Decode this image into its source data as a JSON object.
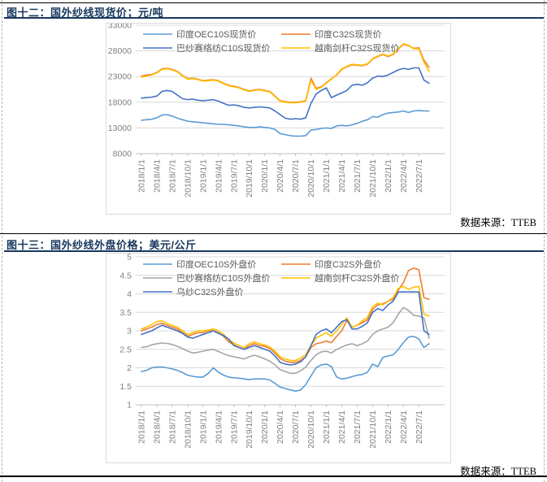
{
  "figures": [
    {
      "title": "图十二：国外纱线现货价；元/吨",
      "source": "数据来源：TTEB"
    },
    {
      "title": "图十三：国外纱线外盘价格；美元/公斤",
      "source": "数据来源：TTEB"
    }
  ],
  "theme": {
    "title_color": "#17375E",
    "grid_color": "#D9D9D9",
    "axis_line_color": "#BFBFBF",
    "axis_text_color": "#808080",
    "legend_text_color": "#595959",
    "separator_color": "#000000"
  },
  "chart_data": [
    {
      "type": "line",
      "title": "国外纱线现货价",
      "unit": "元/吨",
      "grid": true,
      "legend_position": "top-inside-two-columns",
      "x_start": "2018/1/1",
      "x_end": "2022/9/1",
      "x_interval": "monthly",
      "x_tick_labels": [
        "2018/1/1",
        "2018/4/1",
        "2018/7/1",
        "2018/10/1",
        "2019/1/1",
        "2019/4/1",
        "2019/7/1",
        "2019/10/1",
        "2020/1/1",
        "2020/4/1",
        "2020/7/1",
        "2020/10/1",
        "2021/1/1",
        "2021/4/1",
        "2021/7/1",
        "2021/10/1",
        "2022/1/1",
        "2022/4/1",
        "2022/7/1"
      ],
      "y_axis": {
        "min": 8000,
        "max": 33000,
        "step": 5000,
        "tick_labels": [
          "33000",
          "28000",
          "23000",
          "18000",
          "13000",
          "8000"
        ]
      },
      "series": [
        {
          "name": "印度OEC10S现货价",
          "color": "#5B9BD5",
          "values": [
            14500,
            14600,
            14700,
            15000,
            15500,
            15600,
            15300,
            14900,
            14600,
            14300,
            14200,
            14100,
            14000,
            13900,
            13800,
            13700,
            13700,
            13600,
            13500,
            13400,
            13200,
            13100,
            13100,
            13200,
            13100,
            13000,
            12700,
            11900,
            11700,
            11500,
            11400,
            11400,
            11500,
            12600,
            12700,
            12900,
            13000,
            12900,
            13400,
            13500,
            13400,
            13600,
            13900,
            14300,
            14600,
            15200,
            15100,
            15600,
            15900,
            16000,
            16100,
            16300,
            16000,
            16300,
            16400,
            16300,
            16300
          ]
        },
        {
          "name": "印度C32S现货价",
          "color": "#ED7D31",
          "values": [
            23100,
            23300,
            23400,
            23800,
            24500,
            24600,
            24400,
            24000,
            23200,
            22600,
            22700,
            22500,
            22200,
            22300,
            22400,
            22200,
            21700,
            21300,
            21100,
            20900,
            20500,
            20200,
            20400,
            20500,
            20300,
            20100,
            19200,
            18300,
            18100,
            18000,
            18000,
            18100,
            18300,
            22700,
            20700,
            21000,
            21800,
            22600,
            23300,
            24400,
            24900,
            25300,
            25200,
            25100,
            25400,
            26400,
            26900,
            27300,
            26900,
            27300,
            28300,
            29300,
            29000,
            28500,
            28600,
            26200,
            24800
          ]
        },
        {
          "name": "巴纱赛络纺C10S现货价",
          "color": "#4472C4",
          "values": [
            18800,
            18900,
            19000,
            19200,
            20100,
            20300,
            20100,
            19400,
            18700,
            18500,
            18600,
            18400,
            18300,
            18400,
            18500,
            18200,
            17800,
            17400,
            17500,
            17300,
            17000,
            16900,
            17000,
            17100,
            17000,
            16900,
            16300,
            15600,
            14900,
            14700,
            14800,
            14700,
            15000,
            17800,
            19600,
            20300,
            20800,
            18900,
            19400,
            19800,
            20300,
            21300,
            21500,
            21300,
            21800,
            22700,
            23100,
            23000,
            23300,
            23800,
            24300,
            24600,
            24400,
            24700,
            24700,
            22300,
            21700
          ]
        },
        {
          "name": "越南剑杆C32S现货价",
          "color": "#FFC000",
          "values": [
            22900,
            23100,
            23300,
            23700,
            24400,
            24500,
            24300,
            23900,
            23100,
            22500,
            22600,
            22400,
            22100,
            22200,
            22300,
            22100,
            21600,
            21200,
            21000,
            20800,
            20400,
            20100,
            20300,
            20400,
            20200,
            20000,
            19100,
            18200,
            18000,
            17900,
            17900,
            18000,
            18200,
            22300,
            20500,
            20900,
            21700,
            22500,
            23400,
            24500,
            25000,
            25400,
            25300,
            25200,
            25500,
            26500,
            27000,
            27400,
            27000,
            27400,
            28400,
            29400,
            29100,
            28400,
            28400,
            25800,
            24000
          ]
        }
      ]
    },
    {
      "type": "line",
      "title": "国外纱线外盘价格",
      "unit": "美元/公斤",
      "grid": true,
      "legend_position": "top-inside-two-columns",
      "x_start": "2018/1/1",
      "x_end": "2022/9/1",
      "x_interval": "monthly",
      "x_tick_labels": [
        "2018/1/1",
        "2018/4/1",
        "2018/7/1",
        "2018/10/1",
        "2019/1/1",
        "2019/4/1",
        "2019/7/1",
        "2019/10/1",
        "2020/1/1",
        "2020/4/1",
        "2020/7/1",
        "2020/10/1",
        "2021/1/1",
        "2021/4/1",
        "2021/7/1",
        "2021/10/1",
        "2022/1/1",
        "2022/4/1",
        "2022/7/1"
      ],
      "y_axis": {
        "min": 1,
        "max": 5,
        "step": 0.5,
        "tick_labels": [
          "5",
          "4.5",
          "4",
          "3.5",
          "3",
          "2.5",
          "2",
          "1.5",
          "1"
        ]
      },
      "series": [
        {
          "name": "印度OEC10S外盘价",
          "color": "#5B9BD5",
          "values": [
            1.9,
            1.93,
            2.0,
            2.02,
            2.02,
            2.0,
            1.97,
            1.93,
            1.87,
            1.8,
            1.77,
            1.75,
            1.75,
            1.85,
            2.0,
            1.88,
            1.8,
            1.75,
            1.73,
            1.72,
            1.7,
            1.68,
            1.7,
            1.7,
            1.7,
            1.67,
            1.58,
            1.48,
            1.44,
            1.4,
            1.37,
            1.4,
            1.55,
            1.78,
            2.0,
            2.08,
            2.1,
            2.03,
            1.75,
            1.7,
            1.72,
            1.76,
            1.8,
            1.82,
            1.88,
            2.1,
            2.03,
            2.28,
            2.32,
            2.35,
            2.5,
            2.68,
            2.83,
            2.85,
            2.78,
            2.55,
            2.65
          ]
        },
        {
          "name": "印度C32S外盘价",
          "color": "#ED7D31",
          "values": [
            3.0,
            3.05,
            3.1,
            3.17,
            3.2,
            3.15,
            3.1,
            3.05,
            2.95,
            2.85,
            2.9,
            2.95,
            2.95,
            3.0,
            3.0,
            2.95,
            2.85,
            2.7,
            2.62,
            2.55,
            2.5,
            2.6,
            2.65,
            2.6,
            2.58,
            2.52,
            2.4,
            2.25,
            2.18,
            2.15,
            2.15,
            2.2,
            2.3,
            2.55,
            2.65,
            2.68,
            2.72,
            2.68,
            2.85,
            3.0,
            3.28,
            3.1,
            3.15,
            3.22,
            3.3,
            3.58,
            3.7,
            3.73,
            3.8,
            3.85,
            4.1,
            4.3,
            4.63,
            4.7,
            4.65,
            3.9,
            3.85
          ]
        },
        {
          "name": "巴纱赛络纺C10S外盘价",
          "color": "#A5A5A5",
          "values": [
            2.55,
            2.57,
            2.62,
            2.65,
            2.67,
            2.66,
            2.63,
            2.58,
            2.52,
            2.45,
            2.4,
            2.42,
            2.45,
            2.48,
            2.5,
            2.44,
            2.38,
            2.33,
            2.3,
            2.27,
            2.24,
            2.3,
            2.34,
            2.3,
            2.24,
            2.18,
            2.08,
            1.95,
            1.9,
            1.85,
            1.85,
            1.92,
            2.02,
            2.2,
            2.35,
            2.43,
            2.45,
            2.4,
            2.5,
            2.56,
            2.62,
            2.65,
            2.6,
            2.65,
            2.72,
            2.9,
            3.0,
            3.05,
            3.1,
            3.22,
            3.45,
            3.63,
            3.55,
            3.42,
            3.4,
            3.35,
            2.8
          ]
        },
        {
          "name": "越南剑杆C32S外盘价",
          "color": "#FFC000",
          "values": [
            3.05,
            3.1,
            3.17,
            3.25,
            3.27,
            3.2,
            3.15,
            3.1,
            3.0,
            2.9,
            2.95,
            3.0,
            3.0,
            3.02,
            3.05,
            3.0,
            2.9,
            2.75,
            2.67,
            2.6,
            2.55,
            2.65,
            2.7,
            2.65,
            2.62,
            2.56,
            2.45,
            2.3,
            2.24,
            2.2,
            2.2,
            2.26,
            2.36,
            2.6,
            2.8,
            2.88,
            2.95,
            2.85,
            3.0,
            3.18,
            3.35,
            3.1,
            3.15,
            3.27,
            3.36,
            3.65,
            3.75,
            3.7,
            3.8,
            3.9,
            4.15,
            4.2,
            4.12,
            4.18,
            4.2,
            3.45,
            3.4
          ]
        },
        {
          "name": "乌纱C32S外盘价",
          "color": "#4472C4",
          "values": [
            2.9,
            2.95,
            3.0,
            3.08,
            3.15,
            3.1,
            3.05,
            3.0,
            2.93,
            2.83,
            2.8,
            2.85,
            2.9,
            2.95,
            3.0,
            2.93,
            2.87,
            2.78,
            2.6,
            2.55,
            2.5,
            2.55,
            2.6,
            2.55,
            2.5,
            2.45,
            2.32,
            2.15,
            2.1,
            2.08,
            2.1,
            2.16,
            2.3,
            2.6,
            2.9,
            3.0,
            3.05,
            2.95,
            3.1,
            3.25,
            3.3,
            3.05,
            3.05,
            3.12,
            3.22,
            3.5,
            3.6,
            3.55,
            3.7,
            3.8,
            4.05,
            4.05,
            4.05,
            4.05,
            4.05,
            3.0,
            2.9
          ]
        }
      ]
    }
  ]
}
